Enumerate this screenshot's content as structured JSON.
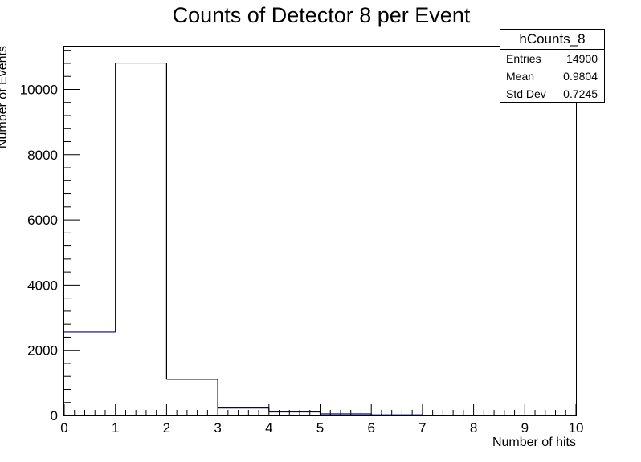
{
  "chart_data": {
    "type": "bar",
    "title": "Counts of Detector 8 per Event",
    "xlabel": "Number of hits",
    "ylabel": "Number of Events",
    "xlim": [
      0,
      10
    ],
    "ylim": [
      0,
      11340
    ],
    "x_ticks": [
      "0",
      "1",
      "2",
      "3",
      "4",
      "5",
      "6",
      "7",
      "8",
      "9",
      "10"
    ],
    "y_ticks": [
      "0",
      "2000",
      "4000",
      "6000",
      "8000",
      "10000"
    ],
    "bin_edges": [
      0,
      1,
      2,
      3,
      4,
      5,
      6,
      7,
      8,
      9,
      10
    ],
    "values": [
      2560,
      10810,
      1110,
      230,
      110,
      50,
      20,
      8,
      2,
      0
    ],
    "line_color": "#000080",
    "grid": false
  },
  "stats_box": {
    "title": "hCounts_8",
    "rows": [
      {
        "label": "Entries",
        "value": "14900"
      },
      {
        "label": "Mean",
        "value": "0.9804"
      },
      {
        "label": "Std Dev",
        "value": "0.7245"
      }
    ]
  }
}
